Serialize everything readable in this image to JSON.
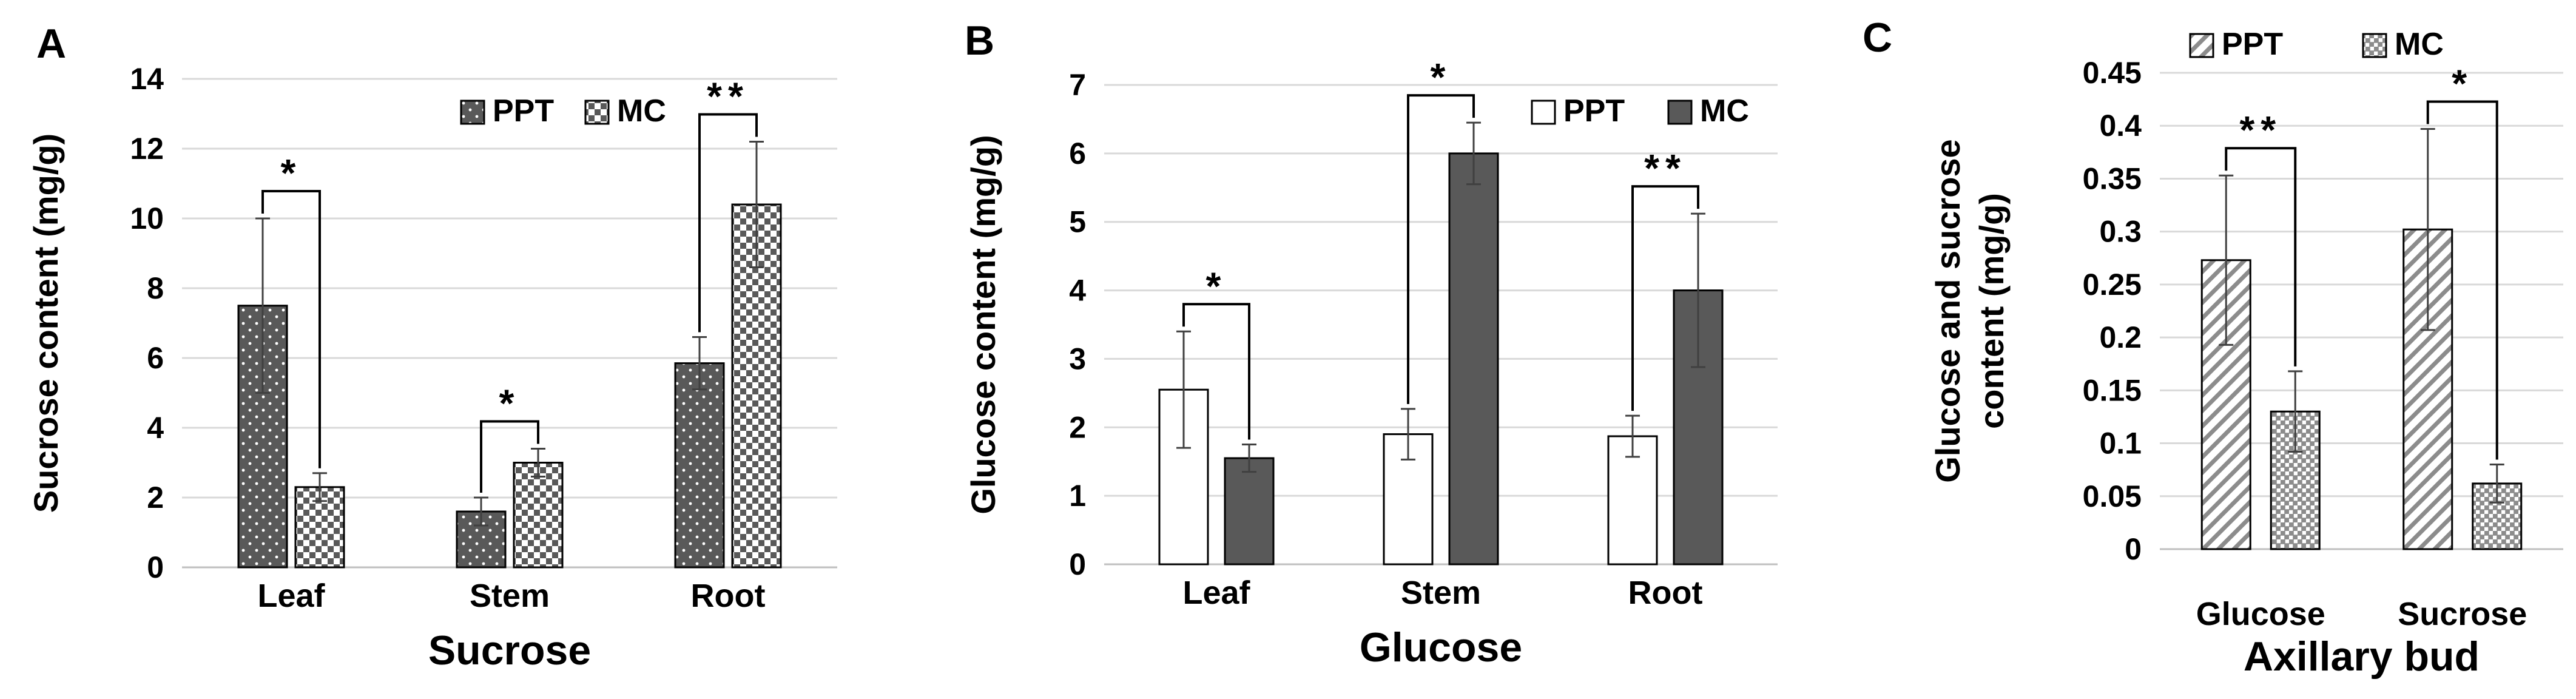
{
  "colors": {
    "dark_fill": "#595959",
    "axis": "#bfbfbf",
    "grid": "#d9d9d9",
    "text": "#000000",
    "error": "#404040",
    "hatch": "#7f7f7f"
  },
  "chart_data": [
    {
      "type": "bar",
      "panel_label": "A",
      "title": "",
      "xlabel": "Sucrose",
      "ylabel": "Sucrose content (mg/g)",
      "ylim": [
        0,
        14
      ],
      "yticks": [
        "0",
        "2",
        "4",
        "6",
        "8",
        "10",
        "12",
        "14"
      ],
      "grid": true,
      "legend": "top-right",
      "categories": [
        "Leaf",
        "Stem",
        "Root"
      ],
      "series": [
        {
          "name": "PPT",
          "pattern": "dots",
          "values": [
            7.5,
            1.6,
            5.85
          ],
          "errors": [
            2.5,
            0.4,
            0.75
          ]
        },
        {
          "name": "MC",
          "pattern": "checker",
          "values": [
            2.3,
            3.0,
            10.4
          ],
          "errors": [
            0.4,
            0.4,
            1.8
          ]
        }
      ],
      "significance": [
        "*",
        "*",
        "**"
      ]
    },
    {
      "type": "bar",
      "panel_label": "B",
      "title": "",
      "xlabel": "Glucose",
      "ylabel": "Glucose content (mg/g)",
      "ylim": [
        0,
        7
      ],
      "yticks": [
        "0",
        "1",
        "2",
        "3",
        "4",
        "5",
        "6",
        "7"
      ],
      "grid": true,
      "legend": "top-right",
      "categories": [
        "Leaf",
        "Stem",
        "Root"
      ],
      "series": [
        {
          "name": "PPT",
          "pattern": "white",
          "values": [
            2.55,
            1.9,
            1.87
          ],
          "errors": [
            0.85,
            0.37,
            0.3
          ]
        },
        {
          "name": "MC",
          "pattern": "solid",
          "values": [
            1.55,
            6.0,
            4.0
          ],
          "errors": [
            0.2,
            0.45,
            1.12
          ]
        }
      ],
      "significance": [
        "*",
        "*",
        "**"
      ]
    },
    {
      "type": "bar",
      "panel_label": "C",
      "title": "",
      "xlabel": "Axillary bud",
      "ylabel": "Glucose and sucrose content (mg/g)",
      "ylabel_lines": [
        "Glucose and sucrose",
        "content (mg/g)"
      ],
      "ylim": [
        0,
        0.45
      ],
      "yticks": [
        "0",
        "0.05",
        "0.1",
        "0.15",
        "0.2",
        "0.25",
        "0.3",
        "0.35",
        "0.4",
        "0.45"
      ],
      "grid": true,
      "legend": "top",
      "categories": [
        "Glucose",
        "Sucrose"
      ],
      "series": [
        {
          "name": "PPT",
          "pattern": "diagonal",
          "values": [
            0.273,
            0.302
          ],
          "errors": [
            0.08,
            0.095
          ]
        },
        {
          "name": "MC",
          "pattern": "crosshatch",
          "values": [
            0.13,
            0.062
          ],
          "errors": [
            0.038,
            0.018
          ]
        }
      ],
      "significance": [
        "**",
        "*"
      ]
    }
  ]
}
